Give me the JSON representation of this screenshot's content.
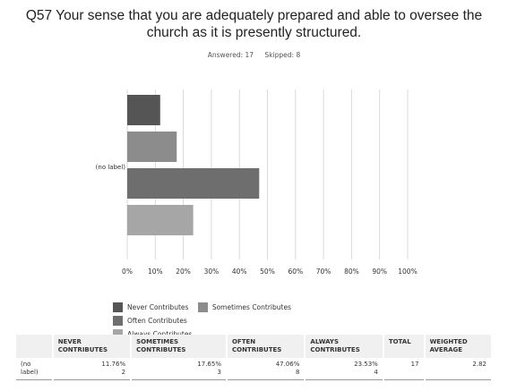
{
  "question": {
    "title": "Q57 Your sense that you are adequately prepared and able to oversee the church as it is presently structured.",
    "answered": "Answered: 17",
    "skipped": "Skipped: 8"
  },
  "colors": {
    "never": "#555555",
    "sometimes": "#8c8c8c",
    "often": "#6e6e6e",
    "always": "#a6a6a6",
    "grid": "#d9d9d9"
  },
  "chart_data": {
    "type": "bar",
    "orientation": "horizontal",
    "categories": [
      "(no label)"
    ],
    "series": [
      {
        "name": "Never Contributes",
        "values": [
          11.76
        ]
      },
      {
        "name": "Sometimes Contributes",
        "values": [
          17.65
        ]
      },
      {
        "name": "Often Contributes",
        "values": [
          47.06
        ]
      },
      {
        "name": "Always Contributes",
        "values": [
          23.53
        ]
      }
    ],
    "xlim": [
      0,
      100
    ],
    "xticks": [
      "0%",
      "10%",
      "20%",
      "30%",
      "40%",
      "50%",
      "60%",
      "70%",
      "80%",
      "90%",
      "100%"
    ],
    "grid": true,
    "legend_position": "bottom"
  },
  "table": {
    "headers": [
      "",
      "NEVER CONTRIBUTES",
      "SOMETIMES CONTRIBUTES",
      "OFTEN CONTRIBUTES",
      "ALWAYS CONTRIBUTES",
      "TOTAL",
      "WEIGHTED AVERAGE"
    ],
    "row": {
      "label": "(no label)",
      "never_pct": "11.76%",
      "never_n": "2",
      "sometimes_pct": "17.65%",
      "sometimes_n": "3",
      "often_pct": "47.06%",
      "often_n": "8",
      "always_pct": "23.53%",
      "always_n": "4",
      "total": "17",
      "weighted_average": "2.82"
    }
  }
}
